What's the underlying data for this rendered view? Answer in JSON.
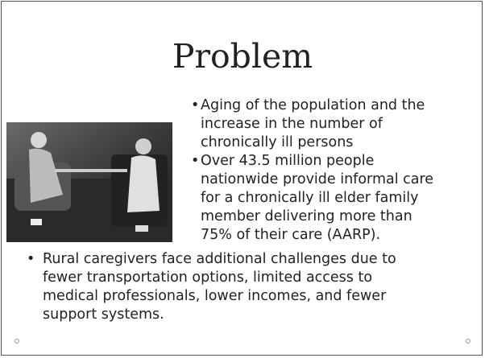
{
  "slide": {
    "title": "Problem",
    "right_bullets": [
      {
        "lines": [
          "Aging of the population and the",
          "increase in the number of",
          "chronically ill persons"
        ]
      },
      {
        "lines": [
          "Over 43.5 million people",
          "nationwide provide informal care",
          "for a chronically ill elder family",
          "member delivering more than",
          "75% of their care (AARP)."
        ]
      }
    ],
    "bottom_bullets": [
      {
        "lines": [
          "Rural caregivers face additional challenges due to",
          "fewer transportation options, limited access to",
          "medical professionals, lower incomes, and fewer",
          "support systems."
        ]
      }
    ]
  }
}
